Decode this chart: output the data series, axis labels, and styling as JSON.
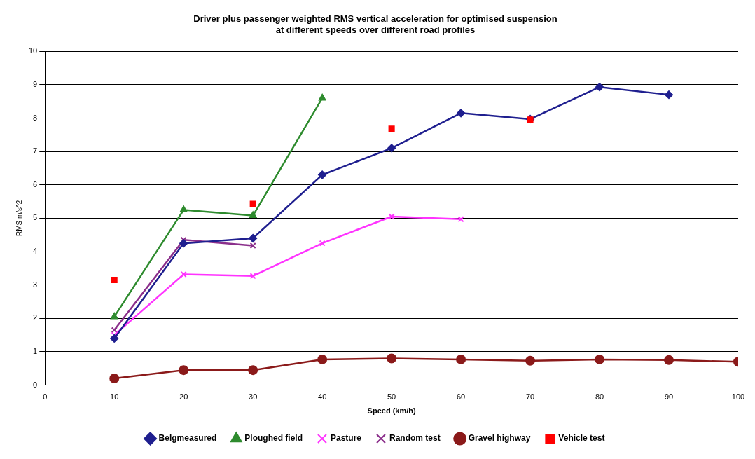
{
  "chart_data": {
    "type": "line",
    "title": "Driver plus passenger weighted RMS vertical acceleration for optimised suspension\nat different speeds over different road profiles",
    "xlabel": "Speed (km/h)",
    "ylabel": "RMS m/s^2",
    "xlim": [
      0,
      100
    ],
    "xticks": [
      0,
      10,
      20,
      30,
      40,
      50,
      60,
      70,
      80,
      90,
      100
    ],
    "ylim": [
      0,
      10
    ],
    "yticks": [
      0,
      1,
      2,
      3,
      4,
      5,
      6,
      7,
      8,
      9,
      10
    ],
    "grid": "y",
    "legend": "bottom",
    "series": [
      {
        "name": "Belgmeasured",
        "color": "#1f1f8f",
        "marker": "diamond",
        "x": [
          10,
          20,
          30,
          40,
          50,
          60,
          70,
          80,
          90
        ],
        "values": [
          1.4,
          4.25,
          4.4,
          6.3,
          7.1,
          8.15,
          7.97,
          8.93,
          8.7
        ]
      },
      {
        "name": "Ploughed field",
        "color": "#2e8b2e",
        "marker": "triangle",
        "x": [
          10,
          20,
          30,
          40
        ],
        "values": [
          2.05,
          5.25,
          5.08,
          8.6
        ]
      },
      {
        "name": "Pasture",
        "color": "#ff33ff",
        "marker": "cross",
        "x": [
          10,
          20,
          30,
          40,
          50,
          60
        ],
        "values": [
          1.5,
          3.32,
          3.27,
          4.25,
          5.05,
          4.97
        ]
      },
      {
        "name": "Random test",
        "color": "#8b2f8b",
        "marker": "cross",
        "x": [
          10,
          20,
          30
        ],
        "values": [
          1.65,
          4.35,
          4.18
        ]
      },
      {
        "name": "Gravel highway",
        "color": "#8b1a1a",
        "marker": "circle",
        "x": [
          10,
          20,
          30,
          40,
          50,
          60,
          70,
          80,
          90,
          100
        ],
        "values": [
          0.2,
          0.45,
          0.45,
          0.77,
          0.8,
          0.77,
          0.73,
          0.77,
          0.75,
          0.7
        ]
      },
      {
        "name": "Vehicle test",
        "type": "scatter",
        "color": "#ff0000",
        "marker": "square",
        "x": [
          10,
          30,
          50,
          70
        ],
        "values": [
          3.15,
          5.43,
          7.68,
          7.95
        ]
      }
    ]
  }
}
